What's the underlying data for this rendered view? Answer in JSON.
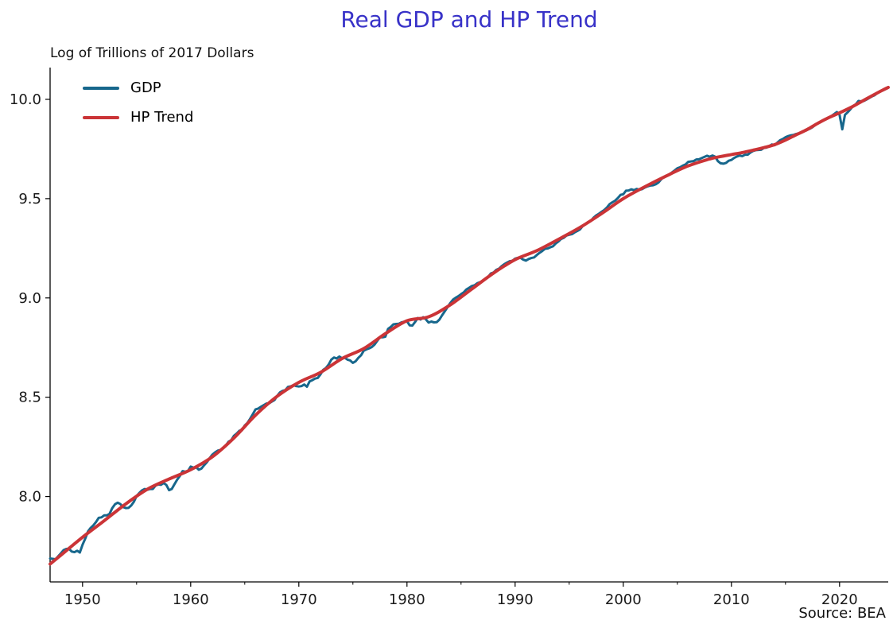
{
  "chart_data": {
    "type": "line",
    "title": "Real GDP and HP Trend",
    "title_color": "#3832C8",
    "ylabel": "Log of Trillions of 2017 Dollars",
    "source_note": "Source: BEA",
    "axis_color": "#000000",
    "tick_label_color": "#1a1a1a",
    "grid": false,
    "legend_position": "upper-left",
    "xlim": [
      1947.0,
      2024.5
    ],
    "ylim": [
      7.57,
      10.16
    ],
    "x_ticks": [
      {
        "value": 1950,
        "label": "1950"
      },
      {
        "value": 1960,
        "label": "1960"
      },
      {
        "value": 1970,
        "label": "1970"
      },
      {
        "value": 1980,
        "label": "1980"
      },
      {
        "value": 1990,
        "label": "1990"
      },
      {
        "value": 2000,
        "label": "2000"
      },
      {
        "value": 2010,
        "label": "2010"
      },
      {
        "value": 2020,
        "label": "2020"
      }
    ],
    "x_minor_ticks": [
      1955,
      1965,
      1975,
      1985,
      1995,
      2005,
      2015
    ],
    "y_ticks": [
      {
        "value": 8.0,
        "label": "8.0"
      },
      {
        "value": 8.5,
        "label": "8.5"
      },
      {
        "value": 9.0,
        "label": "9.0"
      },
      {
        "value": 9.5,
        "label": "9.5"
      },
      {
        "value": 10.0,
        "label": "10.0"
      }
    ],
    "series": [
      {
        "name": "GDP",
        "color": "#17678C",
        "line_width": 3,
        "smooth": false,
        "x_start": 1947.0,
        "x_step": 0.25,
        "values": [
          7.688,
          7.686,
          7.684,
          7.699,
          7.714,
          7.73,
          7.736,
          7.737,
          7.723,
          7.72,
          7.727,
          7.718,
          7.757,
          7.788,
          7.824,
          7.842,
          7.855,
          7.872,
          7.893,
          7.895,
          7.905,
          7.905,
          7.913,
          7.942,
          7.961,
          7.969,
          7.962,
          7.947,
          7.942,
          7.943,
          7.955,
          7.974,
          8.003,
          8.018,
          8.031,
          8.038,
          8.034,
          8.038,
          8.038,
          8.055,
          8.061,
          8.059,
          8.068,
          8.058,
          8.032,
          8.038,
          8.062,
          8.085,
          8.104,
          8.128,
          8.125,
          8.129,
          8.151,
          8.146,
          8.148,
          8.135,
          8.141,
          8.158,
          8.173,
          8.193,
          8.211,
          8.222,
          8.231,
          8.234,
          8.245,
          8.257,
          8.276,
          8.284,
          8.306,
          8.317,
          8.331,
          8.334,
          8.358,
          8.371,
          8.392,
          8.415,
          8.439,
          8.443,
          8.452,
          8.46,
          8.468,
          8.469,
          8.478,
          8.486,
          8.507,
          8.524,
          8.532,
          8.536,
          8.552,
          8.555,
          8.561,
          8.556,
          8.554,
          8.556,
          8.564,
          8.553,
          8.58,
          8.586,
          8.594,
          8.597,
          8.615,
          8.638,
          8.647,
          8.664,
          8.689,
          8.7,
          8.695,
          8.705,
          8.696,
          8.699,
          8.689,
          8.685,
          8.673,
          8.681,
          8.698,
          8.711,
          8.734,
          8.741,
          8.746,
          8.753,
          8.765,
          8.784,
          8.802,
          8.802,
          8.805,
          8.844,
          8.854,
          8.867,
          8.869,
          8.87,
          8.877,
          8.88,
          8.883,
          8.862,
          8.861,
          8.879,
          8.899,
          8.891,
          8.903,
          8.892,
          8.876,
          8.881,
          8.877,
          8.878,
          8.891,
          8.913,
          8.933,
          8.954,
          8.974,
          8.991,
          9.001,
          9.009,
          9.019,
          9.028,
          9.043,
          9.051,
          9.06,
          9.064,
          9.074,
          9.079,
          9.086,
          9.097,
          9.106,
          9.123,
          9.128,
          9.141,
          9.147,
          9.16,
          9.17,
          9.178,
          9.185,
          9.187,
          9.198,
          9.202,
          9.202,
          9.193,
          9.188,
          9.196,
          9.201,
          9.204,
          9.216,
          9.227,
          9.236,
          9.247,
          9.249,
          9.255,
          9.26,
          9.274,
          9.284,
          9.297,
          9.303,
          9.314,
          9.318,
          9.321,
          9.33,
          9.337,
          9.345,
          9.362,
          9.371,
          9.382,
          9.388,
          9.404,
          9.416,
          9.424,
          9.434,
          9.443,
          9.456,
          9.473,
          9.482,
          9.49,
          9.503,
          9.519,
          9.522,
          9.54,
          9.541,
          9.547,
          9.543,
          9.549,
          9.545,
          9.548,
          9.556,
          9.562,
          9.566,
          9.567,
          9.572,
          9.581,
          9.597,
          9.609,
          9.615,
          9.622,
          9.632,
          9.642,
          9.653,
          9.658,
          9.666,
          9.672,
          9.685,
          9.687,
          9.689,
          9.697,
          9.698,
          9.704,
          9.71,
          9.716,
          9.711,
          9.717,
          9.711,
          9.689,
          9.678,
          9.676,
          9.68,
          9.691,
          9.695,
          9.705,
          9.712,
          9.717,
          9.714,
          9.721,
          9.721,
          9.732,
          9.74,
          9.744,
          9.745,
          9.746,
          9.755,
          9.757,
          9.765,
          9.773,
          9.769,
          9.782,
          9.794,
          9.8,
          9.809,
          9.815,
          9.819,
          9.821,
          9.826,
          9.829,
          9.835,
          9.841,
          9.846,
          9.852,
          9.86,
          9.871,
          9.88,
          9.888,
          9.895,
          9.902,
          9.908,
          9.916,
          9.926,
          9.936,
          9.922,
          9.849,
          9.922,
          9.935,
          9.95,
          9.966,
          9.975,
          9.992,
          9.99,
          9.992,
          9.999,
          10.007,
          10.015,
          10.021,
          10.032,
          10.04,
          10.045,
          10.052,
          10.059
        ]
      },
      {
        "name": "HP Trend",
        "color": "#CB3437",
        "line_width": 4,
        "smooth": true,
        "points": [
          [
            1947.0,
            7.66
          ],
          [
            1948,
            7.705
          ],
          [
            1950,
            7.795
          ],
          [
            1952,
            7.878
          ],
          [
            1954,
            7.963
          ],
          [
            1956,
            8.037
          ],
          [
            1958,
            8.088
          ],
          [
            1960,
            8.135
          ],
          [
            1962,
            8.2
          ],
          [
            1964,
            8.295
          ],
          [
            1966,
            8.41
          ],
          [
            1968,
            8.505
          ],
          [
            1970,
            8.575
          ],
          [
            1972,
            8.625
          ],
          [
            1974,
            8.695
          ],
          [
            1976,
            8.745
          ],
          [
            1978,
            8.82
          ],
          [
            1980,
            8.885
          ],
          [
            1982,
            8.905
          ],
          [
            1984,
            8.965
          ],
          [
            1986,
            9.045
          ],
          [
            1988,
            9.125
          ],
          [
            1990,
            9.193
          ],
          [
            1992,
            9.238
          ],
          [
            1994,
            9.295
          ],
          [
            1996,
            9.355
          ],
          [
            1998,
            9.425
          ],
          [
            2000,
            9.5
          ],
          [
            2002,
            9.56
          ],
          [
            2004,
            9.615
          ],
          [
            2006,
            9.665
          ],
          [
            2008,
            9.7
          ],
          [
            2009,
            9.712
          ],
          [
            2010,
            9.722
          ],
          [
            2011,
            9.732
          ],
          [
            2012,
            9.744
          ],
          [
            2013,
            9.757
          ],
          [
            2014,
            9.772
          ],
          [
            2015,
            9.795
          ],
          [
            2016,
            9.822
          ],
          [
            2017,
            9.848
          ],
          [
            2018,
            9.88
          ],
          [
            2019,
            9.908
          ],
          [
            2020,
            9.932
          ],
          [
            2021,
            9.958
          ],
          [
            2022,
            9.988
          ],
          [
            2023,
            10.018
          ],
          [
            2024,
            10.047
          ],
          [
            2024.5,
            10.06
          ]
        ]
      }
    ]
  }
}
